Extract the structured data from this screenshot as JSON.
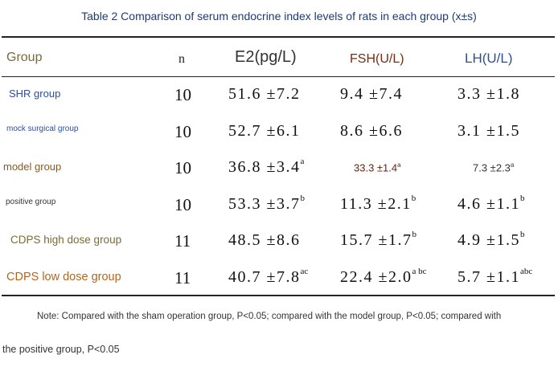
{
  "title": "Table 2 Comparison of serum endocrine index levels of rats in each group (x±s)",
  "header": {
    "group": "Group",
    "n": "n",
    "e2": "E2(pg/L)",
    "fsh": "FSH(U/L)",
    "lh": "LH(U/L)"
  },
  "rows": [
    {
      "group": "SHR group",
      "group_color": "#2d4f9a",
      "n": "10",
      "e2": "51.6 ±7.2",
      "e2_sup": "",
      "fsh": "9.4 ±7.4",
      "fsh_sup": "",
      "lh": "3.3 ±1.8",
      "lh_sup": ""
    },
    {
      "group": "mock surgical group",
      "group_color": "#2d4f9a",
      "n": "10",
      "e2": "52.7 ±6.1",
      "e2_sup": "",
      "fsh": "8.6 ±6.6",
      "fsh_sup": "",
      "lh": "3.1 ±1.5",
      "lh_sup": ""
    },
    {
      "group": "model group",
      "group_color": "#8a5a1a",
      "n": "10",
      "e2": "36.8 ±3.4",
      "e2_sup": "a",
      "fsh": "33.3 ±1.4",
      "fsh_sup": "a",
      "lh": "7.3 ±2.3",
      "lh_sup": "a"
    },
    {
      "group": "positive group",
      "group_color": "#333333",
      "n": "10",
      "e2": "53.3 ±3.7",
      "e2_sup": "b",
      "fsh": "11.3 ±2.1",
      "fsh_sup": "b",
      "lh": "4.6 ±1.1",
      "lh_sup": "b"
    },
    {
      "group": "CDPS high dose group",
      "group_color": "#7a6a3a",
      "n": "11",
      "e2": "48.5 ±8.6",
      "e2_sup": "",
      "fsh": "15.7 ±1.7",
      "fsh_sup": "b",
      "lh": "4.9 ±1.5",
      "lh_sup": "b"
    },
    {
      "group": "CDPS low dose group",
      "group_color": "#b5651d",
      "n": "11",
      "e2": "40.7 ±7.8",
      "e2_sup": "ac",
      "fsh": "22.4 ±2.0",
      "fsh_sup": "a bc",
      "lh": "5.7 ±1.1",
      "lh_sup": "abc"
    }
  ],
  "note_line1": "Note: Compared with the sham operation group, P<0.05; compared with the model group, P<0.05; compared with",
  "note_line2": "the positive group, P<0.05"
}
